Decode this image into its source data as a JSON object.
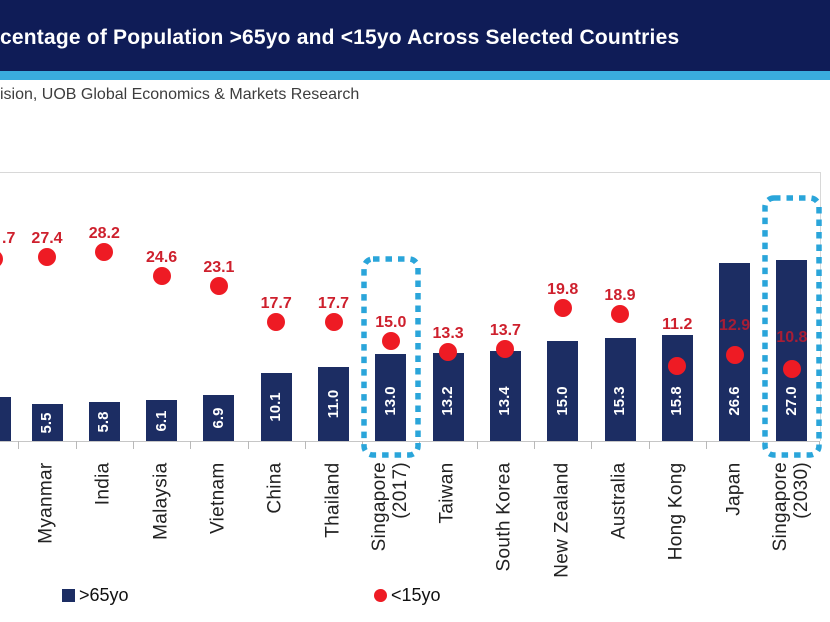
{
  "header": {
    "title": "centage of Population >65yo and <15yo Across Selected Countries"
  },
  "source_line": "ision, UOB Global Economics & Markets Research",
  "colors": {
    "banner": "#0f1c57",
    "stripe": "#3aabdd",
    "bar": "#1c2d63",
    "dot": "#ee1b24",
    "data_label": "#ce202d",
    "data_label_on_bar": "#a81d35",
    "highlight_box": "#2aa5da"
  },
  "legend": [
    {
      "label": ">65yo",
      "marker": "square",
      "color": "#1c2d63"
    },
    {
      "label": "<15yo",
      "marker": "circle",
      "color": "#ee1b24"
    }
  ],
  "chart_data": {
    "type": "bar+scatter",
    "title": "centage of Population >65yo and <15yo Across Selected Countries",
    "categories": [
      "Myanmar",
      "India",
      "Malaysia",
      "Vietnam",
      "China",
      "Thailand",
      "Singapore (2017)",
      "Taiwan",
      "South Korea",
      "New Zealand",
      "Australia",
      "Hong Kong",
      "Japan",
      "Singapore (2030)"
    ],
    "series": [
      {
        "name": ">65yo",
        "type": "bar",
        "values": [
          5.5,
          5.8,
          6.1,
          6.9,
          10.1,
          11.0,
          13.0,
          13.2,
          13.4,
          15.0,
          15.3,
          15.8,
          26.6,
          27.0
        ]
      },
      {
        "name": "<15yo",
        "type": "scatter",
        "values": [
          27.4,
          28.2,
          24.6,
          23.1,
          17.7,
          17.7,
          15.0,
          13.3,
          13.7,
          19.8,
          18.9,
          11.2,
          12.9,
          10.8
        ]
      }
    ],
    "partial_left_column": {
      "dot_label_visible": ".7",
      "bar_partially_visible": true
    },
    "highlighted_categories": [
      "Singapore (2017)",
      "Singapore (2030)"
    ],
    "data_labels_shown": true,
    "grid": false,
    "value_axis_labels_visible": false
  }
}
